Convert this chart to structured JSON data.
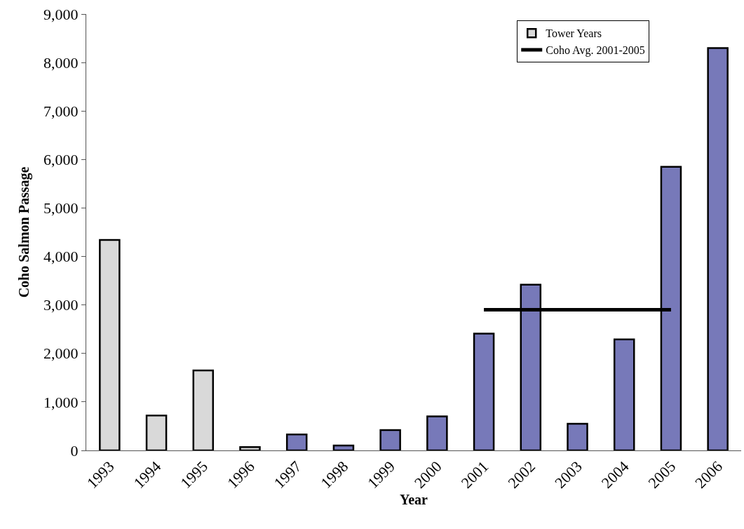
{
  "chart_data": {
    "type": "bar",
    "xlabel": "Year",
    "ylabel": "Coho Salmon Passage",
    "categories": [
      "1993",
      "1994",
      "1995",
      "1996",
      "1997",
      "1998",
      "1999",
      "2000",
      "2001",
      "2002",
      "2003",
      "2004",
      "2005",
      "2006"
    ],
    "series": [
      {
        "name": "Tower Years",
        "color": "#d9d9d9",
        "values": [
          4340,
          720,
          1650,
          70,
          null,
          null,
          null,
          null,
          null,
          null,
          null,
          null,
          null,
          null
        ]
      },
      {
        "color": "#7779b9",
        "values": [
          null,
          null,
          null,
          null,
          330,
          100,
          420,
          700,
          2410,
          3420,
          550,
          2290,
          5850,
          8300
        ]
      },
      {
        "name": "Coho Avg. 2001-2005",
        "type": "line",
        "color": "#000000",
        "values": [
          null,
          null,
          null,
          null,
          null,
          null,
          null,
          null,
          2900,
          2900,
          2900,
          2900,
          2900,
          null
        ]
      }
    ],
    "ylim": [
      0,
      9000
    ],
    "yticks": [
      0,
      {
        "value": 1000,
        "label": "1,000"
      },
      {
        "value": 2000,
        "label": "2,000"
      },
      {
        "value": 3000,
        "label": "3,000"
      },
      {
        "value": 4000,
        "label": "4,000"
      },
      {
        "value": 5000,
        "label": "5,000"
      },
      {
        "value": 6000,
        "label": "6,000"
      },
      {
        "value": 7000,
        "label": "7,000"
      },
      {
        "value": 8000,
        "label": "8,000"
      },
      {
        "value": 9000,
        "label": "9,000"
      }
    ],
    "legend": "top right"
  }
}
